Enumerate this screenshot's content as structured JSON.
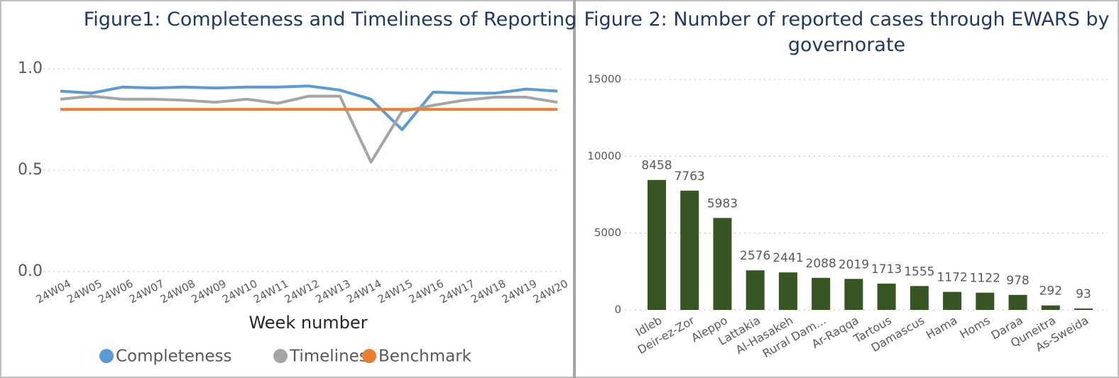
{
  "chart_data": [
    {
      "type": "line",
      "title": "Figure1: Completeness and Timeliness of Reporting",
      "categories": [
        "24W04",
        "24W05",
        "24W06",
        "24W07",
        "24W08",
        "24W09",
        "24W10",
        "24W11",
        "24W12",
        "24W13",
        "24W14",
        "24W15",
        "24W16",
        "24W17",
        "24W18",
        "24W19",
        "24W20"
      ],
      "series": [
        {
          "name": "Completeness",
          "color": "#5b9bd5",
          "values": [
            0.89,
            0.88,
            0.91,
            0.905,
            0.91,
            0.905,
            0.91,
            0.91,
            0.915,
            0.895,
            0.85,
            0.7,
            0.885,
            0.88,
            0.88,
            0.9,
            0.89
          ]
        },
        {
          "name": "Timeliness",
          "color": "#a5a5a5",
          "values": [
            0.85,
            0.865,
            0.85,
            0.85,
            0.845,
            0.835,
            0.85,
            0.83,
            0.865,
            0.865,
            0.54,
            0.79,
            0.82,
            0.845,
            0.86,
            0.86,
            0.835
          ]
        },
        {
          "name": "Benchmark",
          "color": "#ed7d31",
          "values": [
            0.8,
            0.8,
            0.8,
            0.8,
            0.8,
            0.8,
            0.8,
            0.8,
            0.8,
            0.8,
            0.8,
            0.8,
            0.8,
            0.8,
            0.8,
            0.8,
            0.8
          ]
        }
      ],
      "x_label": "Week number",
      "ylim": [
        0,
        1.0
      ],
      "yticks": [
        {
          "value": 0,
          "label": "0.0"
        },
        0.5,
        {
          "value": 1.0,
          "label": "1.0"
        }
      ],
      "grid": true,
      "legend": "bottom"
    },
    {
      "type": "bar",
      "title": "Figure 2: Number of reported cases through EWARS by governorate",
      "categories": [
        "Idleb",
        "Deir-ez-Zor",
        "Aleppo",
        "Lattakia",
        "Al-Hasakeh",
        "Rural Dam...",
        "Ar-Raqqa",
        "Tartous",
        "Damascus",
        "Hama",
        "Homs",
        "Daraa",
        "Quneitra",
        "As-Sweida"
      ],
      "values": [
        8458,
        7763,
        5983,
        2576,
        2441,
        2088,
        2019,
        1713,
        1555,
        1172,
        1122,
        978,
        292,
        93
      ],
      "color": "#375623",
      "ylim": [
        0,
        15000
      ],
      "yticks": [
        0,
        5000,
        10000,
        15000
      ],
      "grid": true
    }
  ]
}
